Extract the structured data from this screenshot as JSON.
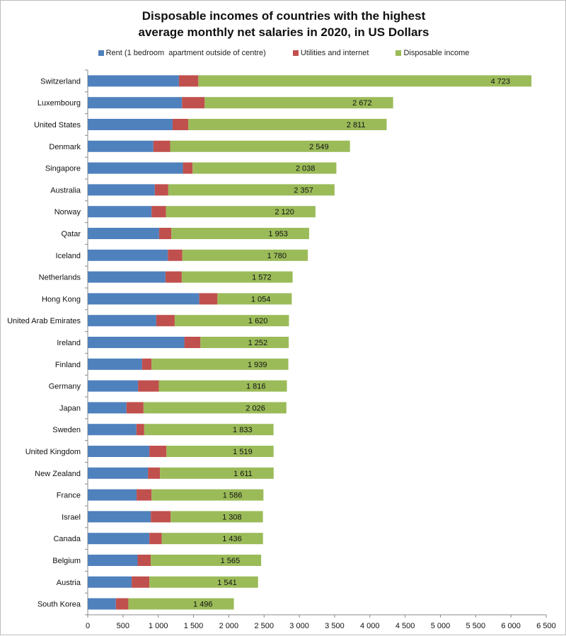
{
  "chart_data": {
    "type": "bar",
    "orientation": "horizontal",
    "stacked": true,
    "title_lines": [
      "Disposable incomes of countries with the highest",
      "average monthly net salaries in 2020, in US Dollars"
    ],
    "legend_placement": "top",
    "grid": false,
    "xlim": [
      0,
      6500
    ],
    "x_ticks": [
      0,
      500,
      1000,
      1500,
      2000,
      2500,
      3000,
      3500,
      4000,
      4500,
      5000,
      5500,
      6000,
      6500
    ],
    "x_tick_labels": [
      "0",
      "500",
      "1 000",
      "1 500",
      "2 000",
      "2 500",
      "3 000",
      "3 500",
      "4 000",
      "4 500",
      "5 000",
      "5 500",
      "6 000",
      "6 500"
    ],
    "categories": [
      "Switzerland",
      "Luxembourg",
      "United States",
      "Denmark",
      "Singapore",
      "Australia",
      "Norway",
      "Qatar",
      "Iceland",
      "Netherlands",
      "Hong Kong",
      "United Arab Emirates",
      "Ireland",
      "Finland",
      "Germany",
      "Japan",
      "Sweden",
      "United Kingdom",
      "New Zealand",
      "France",
      "Israel",
      "Canada",
      "Belgium",
      "Austria",
      "South Korea"
    ],
    "series": [
      {
        "name": "Rent (1 bedroom  apartment outside of centre)",
        "color": "#4f81bd",
        "values": [
          1293,
          1337,
          1203,
          931,
          1350,
          951,
          905,
          1012,
          1136,
          1102,
          1581,
          972,
          1370,
          771,
          714,
          549,
          690,
          874,
          854,
          693,
          894,
          874,
          707,
          623,
          399
        ]
      },
      {
        "name": "Utilities and internet",
        "color": "#c0504d",
        "values": [
          275,
          321,
          224,
          238,
          137,
          191,
          204,
          174,
          204,
          231,
          258,
          261,
          228,
          134,
          294,
          242,
          111,
          242,
          171,
          212,
          282,
          175,
          187,
          251,
          177
        ]
      },
      {
        "name": "Disposable income",
        "color": "#9bbb59",
        "values": [
          4723,
          2672,
          2811,
          2549,
          2038,
          2357,
          2120,
          1953,
          1780,
          1572,
          1054,
          1620,
          1252,
          1939,
          1816,
          2026,
          1833,
          1519,
          1611,
          1586,
          1308,
          1436,
          1565,
          1541,
          1496
        ]
      }
    ],
    "data_labels": [
      "4 723",
      "2 672",
      "2 811",
      "2 549",
      "2 038",
      "2 357",
      "2 120",
      "1 953",
      "1 780",
      "1 572",
      "1 054",
      "1 620",
      "1 252",
      "1 939",
      "1 816",
      "2 026",
      "1 833",
      "1 519",
      "1 611",
      "1 586",
      "1 308",
      "1 436",
      "1 565",
      "1 541",
      "1 496"
    ]
  }
}
